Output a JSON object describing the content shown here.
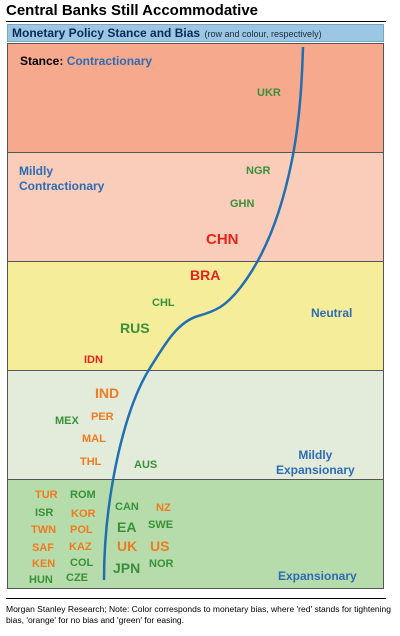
{
  "page": {
    "title": "Central Banks Still Accommodative",
    "header_main": "Monetary Policy Stance and Bias",
    "header_sub": "(row and colour, respectively)",
    "source_note": "Morgan Stanley Research; Note: Color corresponds to monetary bias, where 'red' stands for tightening bias, 'orange' for no bias and 'green' for easing."
  },
  "colors": {
    "tightening": "#e3231c",
    "no_bias": "#f07a1e",
    "easing": "#38913a",
    "band_label": "#2d6cb5",
    "curve": "#1f6fb2"
  },
  "chart_data": {
    "type": "table",
    "stance_prefix": "Stance:",
    "bands": [
      {
        "stance": "Contractionary",
        "label": "Contractionary",
        "fill": "#f6a98c"
      },
      {
        "stance": "Mildly Contractionary",
        "label": [
          "Mildly",
          "Contractionary"
        ],
        "fill": "#f9cdb9"
      },
      {
        "stance": "Neutral",
        "label": "Neutral",
        "fill": "#f6ed9b"
      },
      {
        "stance": "Mildly Expansionary",
        "label": [
          "Mildly",
          "Expansionary"
        ],
        "fill": "#e3ecdb"
      },
      {
        "stance": "Expansionary",
        "label": "Expansionary",
        "fill": "#b7dcab"
      }
    ],
    "countries": [
      {
        "code": "UKR",
        "stance": "Contractionary",
        "bias": "easing"
      },
      {
        "code": "NGR",
        "stance": "Mildly Contractionary",
        "bias": "easing"
      },
      {
        "code": "GHN",
        "stance": "Mildly Contractionary",
        "bias": "easing"
      },
      {
        "code": "CHN",
        "stance": "Mildly Contractionary",
        "bias": "tightening"
      },
      {
        "code": "BRA",
        "stance": "Neutral",
        "bias": "tightening"
      },
      {
        "code": "CHL",
        "stance": "Neutral",
        "bias": "easing"
      },
      {
        "code": "RUS",
        "stance": "Neutral",
        "bias": "easing"
      },
      {
        "code": "IDN",
        "stance": "Neutral",
        "bias": "tightening"
      },
      {
        "code": "IND",
        "stance": "Mildly Expansionary",
        "bias": "no bias"
      },
      {
        "code": "MEX",
        "stance": "Mildly Expansionary",
        "bias": "easing"
      },
      {
        "code": "PER",
        "stance": "Mildly Expansionary",
        "bias": "no bias"
      },
      {
        "code": "MAL",
        "stance": "Mildly Expansionary",
        "bias": "no bias"
      },
      {
        "code": "THL",
        "stance": "Mildly Expansionary",
        "bias": "no bias"
      },
      {
        "code": "AUS",
        "stance": "Mildly Expansionary",
        "bias": "easing"
      },
      {
        "code": "TUR",
        "stance": "Expansionary",
        "bias": "no bias"
      },
      {
        "code": "ROM",
        "stance": "Expansionary",
        "bias": "easing"
      },
      {
        "code": "ISR",
        "stance": "Expansionary",
        "bias": "easing"
      },
      {
        "code": "KOR",
        "stance": "Expansionary",
        "bias": "no bias"
      },
      {
        "code": "TWN",
        "stance": "Expansionary",
        "bias": "no bias"
      },
      {
        "code": "POL",
        "stance": "Expansionary",
        "bias": "no bias"
      },
      {
        "code": "SAF",
        "stance": "Expansionary",
        "bias": "no bias"
      },
      {
        "code": "KAZ",
        "stance": "Expansionary",
        "bias": "no bias"
      },
      {
        "code": "KEN",
        "stance": "Expansionary",
        "bias": "no bias"
      },
      {
        "code": "COL",
        "stance": "Expansionary",
        "bias": "easing"
      },
      {
        "code": "HUN",
        "stance": "Expansionary",
        "bias": "easing"
      },
      {
        "code": "CZE",
        "stance": "Expansionary",
        "bias": "easing"
      },
      {
        "code": "CAN",
        "stance": "Expansionary",
        "bias": "easing"
      },
      {
        "code": "NZ",
        "stance": "Expansionary",
        "bias": "no bias"
      },
      {
        "code": "EA",
        "stance": "Expansionary",
        "bias": "easing"
      },
      {
        "code": "SWE",
        "stance": "Expansionary",
        "bias": "easing"
      },
      {
        "code": "UK",
        "stance": "Expansionary",
        "bias": "no bias"
      },
      {
        "code": "US",
        "stance": "Expansionary",
        "bias": "no bias"
      },
      {
        "code": "JPN",
        "stance": "Expansionary",
        "bias": "easing"
      },
      {
        "code": "NOR",
        "stance": "Expansionary",
        "bias": "easing"
      }
    ]
  }
}
